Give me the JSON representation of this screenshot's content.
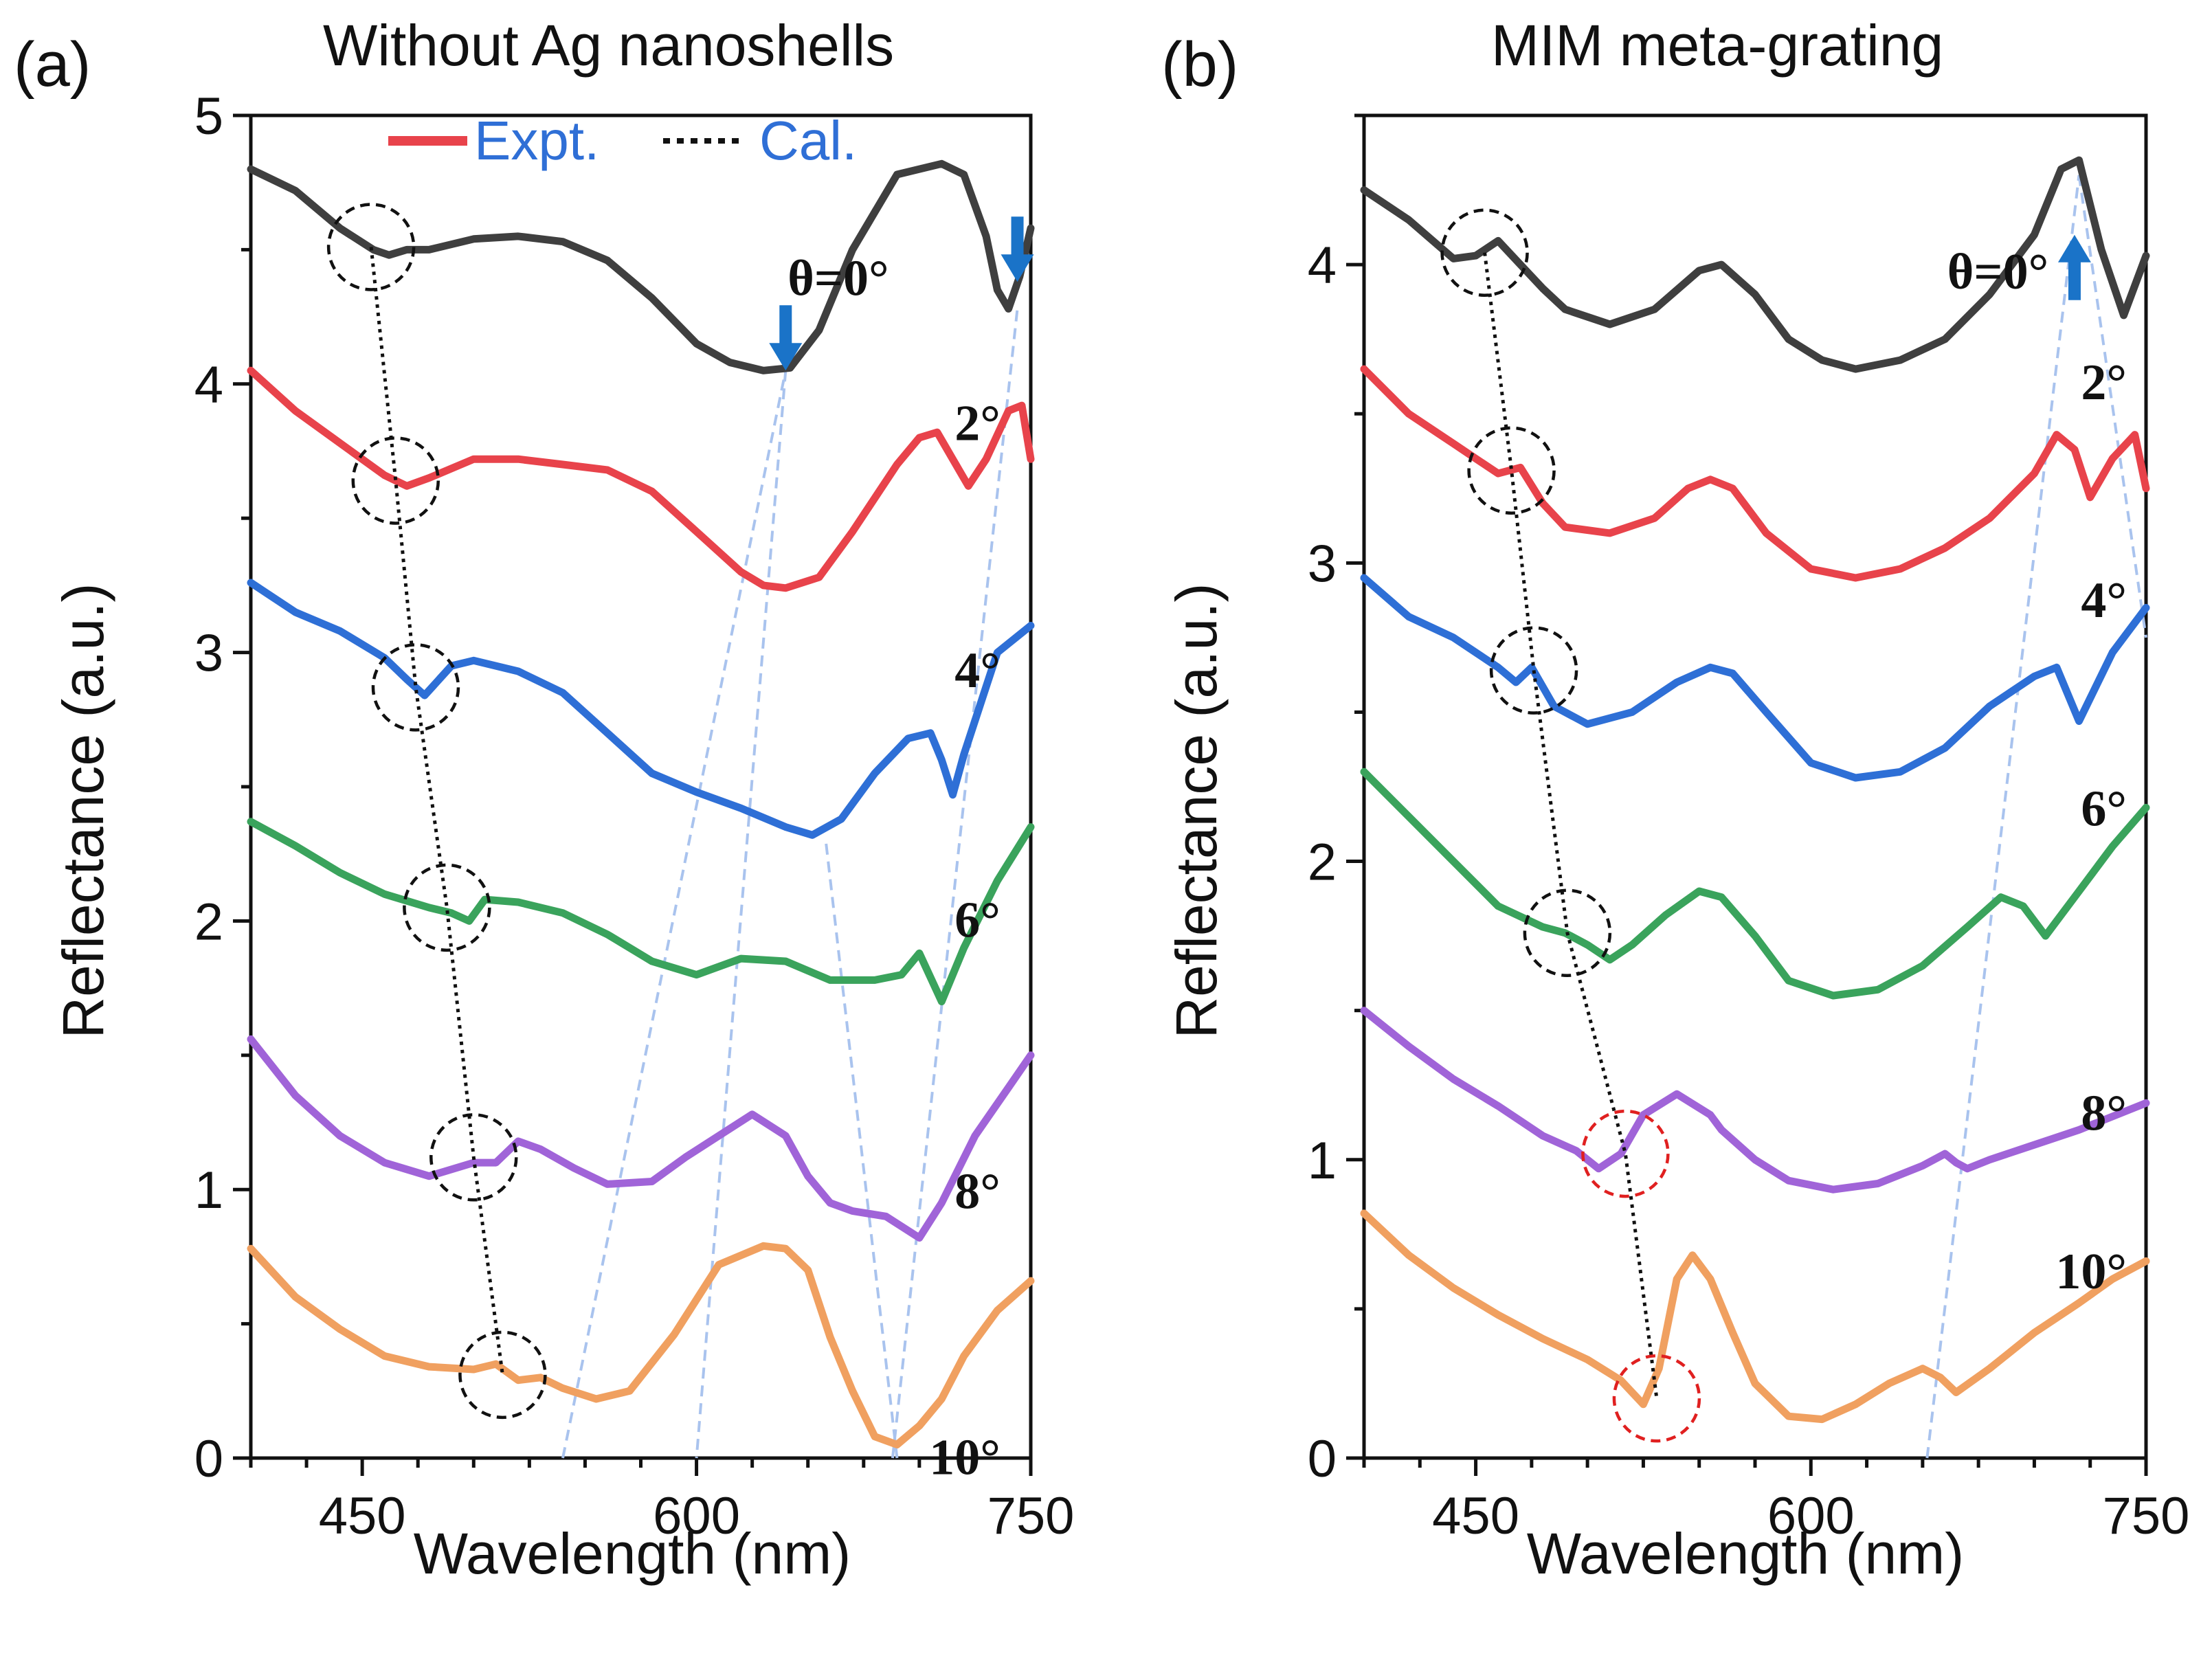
{
  "chart_data": [
    {
      "type": "line",
      "panel_label": "(a)",
      "title": "Without Ag nanoshells",
      "xlabel": "Wavelength (nm)",
      "ylabel": "Reflectance (a.u.)",
      "xlim": [
        400,
        750
      ],
      "ylim": [
        0,
        5
      ],
      "xticks": [
        450,
        600,
        750
      ],
      "yticks": [
        0,
        1,
        2,
        3,
        4,
        5
      ],
      "legend": {
        "expt_label": "Expt.",
        "cal_label": "Cal.",
        "position": "top"
      },
      "series": [
        {
          "name": "θ=0°",
          "color": "#3f3f3f",
          "angle_label": "θ=0°",
          "x": [
            400,
            420,
            440,
            455,
            462,
            470,
            480,
            500,
            520,
            540,
            560,
            580,
            600,
            615,
            630,
            642,
            655,
            670,
            690,
            710,
            720,
            730,
            735,
            740,
            745,
            750
          ],
          "y": [
            4.8,
            4.72,
            4.58,
            4.5,
            4.48,
            4.5,
            4.5,
            4.54,
            4.55,
            4.53,
            4.46,
            4.32,
            4.15,
            4.08,
            4.05,
            4.06,
            4.2,
            4.5,
            4.78,
            4.82,
            4.78,
            4.55,
            4.35,
            4.28,
            4.4,
            4.58
          ]
        },
        {
          "name": "2°",
          "color": "#e8434b",
          "angle_label": "2°",
          "x": [
            400,
            420,
            440,
            460,
            470,
            480,
            500,
            520,
            540,
            560,
            580,
            600,
            620,
            630,
            640,
            655,
            670,
            690,
            700,
            708,
            715,
            722,
            730,
            740,
            746,
            750
          ],
          "y": [
            4.05,
            3.9,
            3.78,
            3.66,
            3.62,
            3.65,
            3.72,
            3.72,
            3.7,
            3.68,
            3.6,
            3.45,
            3.3,
            3.25,
            3.24,
            3.28,
            3.45,
            3.7,
            3.8,
            3.82,
            3.72,
            3.62,
            3.72,
            3.9,
            3.92,
            3.72
          ]
        },
        {
          "name": "4°",
          "color": "#2e6fd6",
          "angle_label": "4°",
          "x": [
            400,
            420,
            440,
            460,
            470,
            478,
            490,
            500,
            520,
            540,
            560,
            580,
            600,
            620,
            640,
            652,
            665,
            680,
            695,
            705,
            710,
            715,
            720,
            735,
            750
          ],
          "y": [
            3.26,
            3.15,
            3.08,
            2.98,
            2.9,
            2.84,
            2.95,
            2.97,
            2.93,
            2.85,
            2.7,
            2.55,
            2.48,
            2.42,
            2.35,
            2.32,
            2.38,
            2.55,
            2.68,
            2.7,
            2.6,
            2.47,
            2.62,
            3.0,
            3.1
          ]
        },
        {
          "name": "6°",
          "color": "#3aa35c",
          "angle_label": "6°",
          "x": [
            400,
            420,
            440,
            460,
            480,
            490,
            498,
            505,
            520,
            540,
            560,
            580,
            600,
            620,
            640,
            660,
            680,
            692,
            700,
            710,
            720,
            735,
            750
          ],
          "y": [
            2.37,
            2.28,
            2.18,
            2.1,
            2.05,
            2.03,
            2.0,
            2.08,
            2.07,
            2.03,
            1.95,
            1.85,
            1.8,
            1.86,
            1.85,
            1.78,
            1.78,
            1.8,
            1.88,
            1.7,
            1.9,
            2.15,
            2.35
          ]
        },
        {
          "name": "8°",
          "color": "#a064d8",
          "angle_label": "8°",
          "x": [
            400,
            420,
            440,
            460,
            480,
            500,
            510,
            520,
            530,
            545,
            560,
            580,
            595,
            610,
            625,
            640,
            650,
            660,
            670,
            685,
            700,
            710,
            725,
            740,
            750
          ],
          "y": [
            1.56,
            1.35,
            1.2,
            1.1,
            1.05,
            1.1,
            1.1,
            1.18,
            1.15,
            1.08,
            1.02,
            1.03,
            1.12,
            1.2,
            1.28,
            1.2,
            1.05,
            0.95,
            0.92,
            0.9,
            0.82,
            0.95,
            1.2,
            1.38,
            1.5
          ]
        },
        {
          "name": "10°",
          "color": "#f0a060",
          "angle_label": "10°",
          "x": [
            400,
            420,
            440,
            460,
            480,
            500,
            510,
            520,
            530,
            540,
            555,
            570,
            590,
            610,
            630,
            640,
            650,
            660,
            670,
            680,
            690,
            700,
            710,
            720,
            735,
            750
          ],
          "y": [
            0.78,
            0.6,
            0.48,
            0.38,
            0.34,
            0.33,
            0.35,
            0.29,
            0.3,
            0.26,
            0.22,
            0.25,
            0.46,
            0.72,
            0.79,
            0.78,
            0.7,
            0.45,
            0.25,
            0.08,
            0.05,
            0.12,
            0.22,
            0.38,
            0.55,
            0.66
          ]
        }
      ],
      "circled_features": {
        "x": [
          454,
          465,
          474,
          488,
          500,
          513
        ],
        "y": [
          4.51,
          3.64,
          2.87,
          2.05,
          1.12,
          0.31
        ]
      },
      "tracking_lines": [
        {
          "x": [
            540,
            640
          ],
          "y": [
            0,
            4.05
          ]
        },
        {
          "x": [
            640,
            600
          ],
          "y": [
            4.05,
            0
          ]
        },
        {
          "x": [
            688,
            744
          ],
          "y": [
            0,
            4.28
          ]
        },
        {
          "x": [
            690,
            658
          ],
          "y": [
            0,
            2.3
          ]
        }
      ],
      "arrows": [
        {
          "direction": "down",
          "x": 640,
          "y_tip": 4.05
        },
        {
          "direction": "down",
          "x": 744,
          "y_tip": 4.38
        }
      ]
    },
    {
      "type": "line",
      "panel_label": "(b)",
      "title": "MIM  meta-grating",
      "xlabel": "Wavelength (nm)",
      "ylabel": "Reflectance (a.u.)",
      "xlim": [
        400,
        750
      ],
      "ylim": [
        0,
        4.5
      ],
      "xticks": [
        450,
        600,
        750
      ],
      "yticks": [
        0,
        1,
        2,
        3,
        4
      ],
      "series": [
        {
          "name": "θ=0°",
          "color": "#3f3f3f",
          "angle_label": "θ=0°",
          "x": [
            400,
            420,
            440,
            450,
            460,
            470,
            480,
            490,
            510,
            530,
            550,
            560,
            575,
            590,
            605,
            620,
            640,
            660,
            680,
            700,
            712,
            720,
            730,
            740,
            750
          ],
          "y": [
            4.25,
            4.15,
            4.02,
            4.03,
            4.08,
            4.0,
            3.92,
            3.85,
            3.8,
            3.85,
            3.98,
            4.0,
            3.9,
            3.75,
            3.68,
            3.65,
            3.68,
            3.75,
            3.9,
            4.1,
            4.32,
            4.35,
            4.05,
            3.83,
            4.03
          ]
        },
        {
          "name": "2°",
          "color": "#e8434b",
          "angle_label": "2°",
          "x": [
            400,
            420,
            440,
            450,
            460,
            470,
            480,
            490,
            510,
            530,
            545,
            555,
            565,
            580,
            600,
            620,
            640,
            660,
            680,
            700,
            710,
            718,
            725,
            735,
            745,
            750
          ],
          "y": [
            3.65,
            3.5,
            3.4,
            3.35,
            3.3,
            3.32,
            3.2,
            3.12,
            3.1,
            3.15,
            3.25,
            3.28,
            3.25,
            3.1,
            2.98,
            2.95,
            2.98,
            3.05,
            3.15,
            3.3,
            3.43,
            3.38,
            3.22,
            3.35,
            3.43,
            3.25
          ]
        },
        {
          "name": "4°",
          "color": "#2e6fd6",
          "angle_label": "4°",
          "x": [
            400,
            420,
            440,
            460,
            468,
            475,
            485,
            500,
            520,
            540,
            555,
            565,
            580,
            600,
            620,
            640,
            660,
            680,
            700,
            710,
            720,
            735,
            750
          ],
          "y": [
            2.95,
            2.82,
            2.75,
            2.65,
            2.6,
            2.65,
            2.52,
            2.46,
            2.5,
            2.6,
            2.65,
            2.63,
            2.5,
            2.33,
            2.28,
            2.3,
            2.38,
            2.52,
            2.62,
            2.65,
            2.47,
            2.7,
            2.85
          ]
        },
        {
          "name": "6°",
          "color": "#3aa35c",
          "angle_label": "6°",
          "x": [
            400,
            420,
            440,
            460,
            480,
            490,
            500,
            510,
            520,
            535,
            550,
            560,
            575,
            590,
            610,
            630,
            650,
            670,
            685,
            695,
            705,
            720,
            735,
            750
          ],
          "y": [
            2.3,
            2.15,
            2.0,
            1.85,
            1.78,
            1.76,
            1.72,
            1.67,
            1.72,
            1.82,
            1.9,
            1.88,
            1.75,
            1.6,
            1.55,
            1.57,
            1.65,
            1.78,
            1.88,
            1.85,
            1.75,
            1.9,
            2.05,
            2.18
          ]
        },
        {
          "name": "8°",
          "color": "#a064d8",
          "angle_label": "8°",
          "x": [
            400,
            420,
            440,
            460,
            480,
            495,
            505,
            515,
            525,
            540,
            555,
            560,
            575,
            590,
            610,
            630,
            650,
            660,
            665,
            670,
            680,
            700,
            720,
            750
          ],
          "y": [
            1.5,
            1.38,
            1.27,
            1.18,
            1.08,
            1.03,
            0.97,
            1.02,
            1.15,
            1.22,
            1.15,
            1.1,
            1.0,
            0.93,
            0.9,
            0.92,
            0.98,
            1.02,
            0.99,
            0.97,
            1.0,
            1.05,
            1.1,
            1.19
          ]
        },
        {
          "name": "10°",
          "color": "#f0a060",
          "angle_label": "10°",
          "x": [
            400,
            420,
            440,
            460,
            480,
            500,
            515,
            525,
            532,
            540,
            547,
            555,
            565,
            575,
            590,
            605,
            620,
            635,
            650,
            658,
            665,
            680,
            700,
            720,
            735,
            750
          ],
          "y": [
            0.82,
            0.68,
            0.57,
            0.48,
            0.4,
            0.33,
            0.26,
            0.18,
            0.3,
            0.6,
            0.68,
            0.6,
            0.42,
            0.25,
            0.14,
            0.13,
            0.18,
            0.25,
            0.3,
            0.27,
            0.22,
            0.3,
            0.42,
            0.52,
            0.6,
            0.66
          ]
        }
      ],
      "circled_features": {
        "x": [
          454,
          466,
          476,
          491,
          517,
          531
        ],
        "y": [
          4.04,
          3.31,
          2.64,
          1.76,
          1.02,
          0.2
        ]
      },
      "tracking_lines": [
        {
          "x": [
            652,
            720
          ],
          "y": [
            0,
            4.3
          ]
        },
        {
          "x": [
            720,
            750
          ],
          "y": [
            4.3,
            2.75
          ]
        }
      ],
      "arrows": [
        {
          "direction": "up",
          "x": 718,
          "y_tip": 4.1
        }
      ]
    }
  ]
}
